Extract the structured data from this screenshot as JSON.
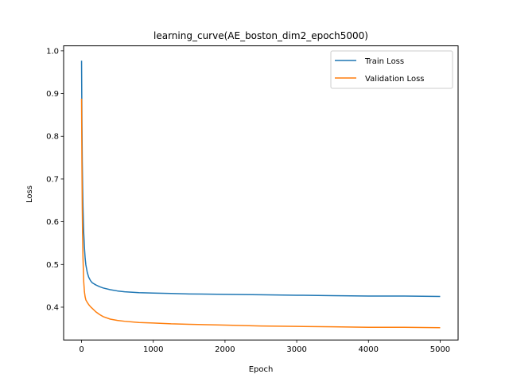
{
  "chart_data": {
    "type": "line",
    "title": "learning_curve(AE_boston_dim2_epoch5000)",
    "xlabel": "Epoch",
    "ylabel": "Loss",
    "xlim": [
      -250,
      5250
    ],
    "ylim": [
      0.3232,
      1.0117
    ],
    "xticks": [
      0,
      1000,
      2000,
      3000,
      4000,
      5000
    ],
    "yticks": [
      0.4,
      0.5,
      0.6,
      0.7,
      0.8,
      0.9,
      1.0
    ],
    "grid": false,
    "legend_position": "top-right",
    "series": [
      {
        "name": "Train Loss",
        "color": "#1f77b4",
        "x": [
          0,
          5,
          10,
          15,
          20,
          30,
          40,
          50,
          60,
          80,
          100,
          125,
          150,
          200,
          250,
          300,
          400,
          500,
          600,
          800,
          1000,
          1250,
          1500,
          2000,
          2500,
          3000,
          3500,
          4000,
          4500,
          5000
        ],
        "y": [
          0.977,
          0.84,
          0.74,
          0.68,
          0.635,
          0.575,
          0.54,
          0.515,
          0.499,
          0.481,
          0.47,
          0.462,
          0.457,
          0.452,
          0.448,
          0.445,
          0.441,
          0.438,
          0.436,
          0.434,
          0.433,
          0.432,
          0.431,
          0.43,
          0.429,
          0.428,
          0.427,
          0.426,
          0.426,
          0.425
        ]
      },
      {
        "name": "Validation Loss",
        "color": "#ff7f0e",
        "x": [
          0,
          5,
          10,
          15,
          20,
          30,
          40,
          50,
          60,
          80,
          100,
          125,
          150,
          200,
          250,
          300,
          400,
          500,
          600,
          800,
          1000,
          1250,
          1500,
          2000,
          2500,
          3000,
          3500,
          4000,
          4500,
          5000
        ],
        "y": [
          0.888,
          0.74,
          0.63,
          0.56,
          0.515,
          0.46,
          0.436,
          0.424,
          0.417,
          0.411,
          0.406,
          0.401,
          0.397,
          0.389,
          0.383,
          0.378,
          0.372,
          0.369,
          0.367,
          0.364,
          0.363,
          0.361,
          0.36,
          0.358,
          0.356,
          0.355,
          0.354,
          0.353,
          0.353,
          0.352
        ]
      }
    ]
  }
}
